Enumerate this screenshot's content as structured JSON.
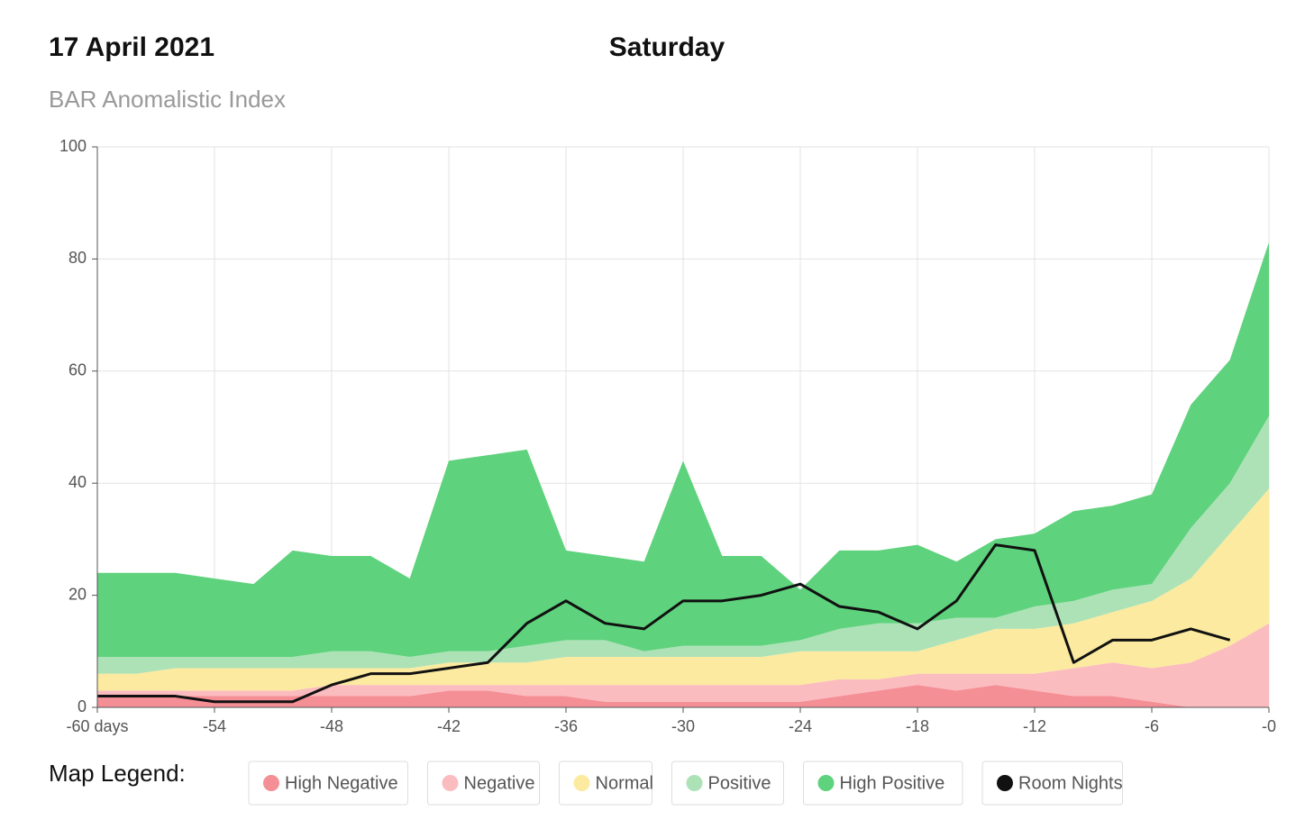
{
  "chart_data": {
    "type": "stacked_area",
    "title": "17 April 2021",
    "subtitle": "BAR Anomalistic Index",
    "day_label": "Saturday",
    "legend_title": "Map Legend:",
    "x": [
      -60,
      -58,
      -56,
      -54,
      -52,
      -50,
      -48,
      -46,
      -44,
      -42,
      -40,
      -38,
      -36,
      -34,
      -32,
      -30,
      -28,
      -26,
      -24,
      -22,
      -20,
      -18,
      -16,
      -14,
      -12,
      -10,
      -8,
      -6,
      -4,
      -2,
      0
    ],
    "series": [
      {
        "name": "High Negative",
        "color": "#f58f96",
        "values": [
          2,
          2,
          2,
          2,
          2,
          2,
          2,
          2,
          2,
          3,
          3,
          2,
          2,
          1,
          1,
          1,
          1,
          1,
          1,
          2,
          3,
          4,
          3,
          4,
          3,
          2,
          2,
          1,
          0,
          0,
          0
        ]
      },
      {
        "name": "Negative",
        "color": "#fbbcc0",
        "values": [
          1,
          1,
          1,
          1,
          1,
          1,
          2,
          2,
          2,
          1,
          1,
          2,
          2,
          3,
          3,
          3,
          3,
          3,
          3,
          3,
          2,
          2,
          3,
          2,
          3,
          5,
          6,
          6,
          8,
          11,
          15
        ]
      },
      {
        "name": "Normal",
        "color": "#fbea9f",
        "values": [
          3,
          3,
          4,
          4,
          4,
          4,
          3,
          3,
          3,
          4,
          4,
          4,
          5,
          5,
          5,
          5,
          5,
          5,
          6,
          5,
          5,
          4,
          6,
          8,
          8,
          8,
          9,
          12,
          15,
          20,
          24
        ]
      },
      {
        "name": "Positive",
        "color": "#ade2b7",
        "values": [
          3,
          3,
          2,
          2,
          2,
          2,
          3,
          3,
          2,
          2,
          2,
          3,
          3,
          3,
          1,
          2,
          2,
          2,
          2,
          4,
          5,
          5,
          4,
          2,
          4,
          4,
          4,
          3,
          9,
          9,
          13
        ]
      },
      {
        "name": "High Positive",
        "color": "#5ed27c",
        "values": [
          15,
          15,
          15,
          14,
          13,
          19,
          17,
          17,
          14,
          34,
          35,
          35,
          16,
          15,
          16,
          33,
          16,
          16,
          9,
          14,
          13,
          14,
          10,
          14,
          13,
          16,
          15,
          16,
          22,
          22,
          31
        ]
      },
      {
        "name": "Room Nights",
        "color": "#111111",
        "line": true,
        "values": [
          2,
          2,
          2,
          1,
          1,
          1,
          4,
          6,
          6,
          7,
          8,
          15,
          19,
          15,
          14,
          19,
          19,
          20,
          22,
          18,
          17,
          14,
          19,
          29,
          28,
          8,
          12,
          12,
          14,
          12,
          null
        ]
      }
    ],
    "xlim": [
      -60,
      0
    ],
    "xticks": [
      {
        "value": -60,
        "label": "-60 days"
      },
      -54,
      -48,
      -42,
      -36,
      -30,
      -24,
      -18,
      -12,
      -6,
      {
        "value": 0,
        "label": "-0"
      }
    ],
    "ylim": [
      0,
      100
    ],
    "yticks": [
      0,
      20,
      40,
      60,
      80,
      100
    ],
    "grid": true
  }
}
